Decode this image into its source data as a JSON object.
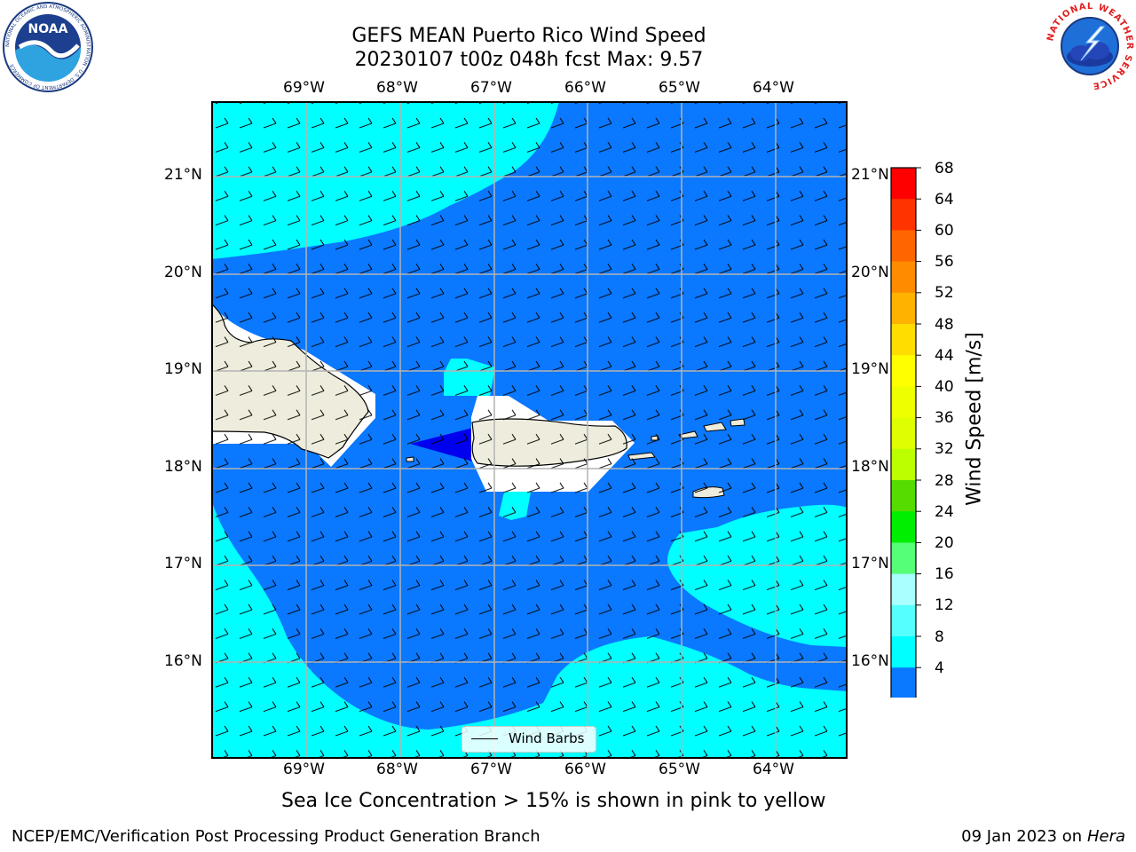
{
  "title": {
    "line1": "GEFS MEAN Puerto Rico Wind Speed",
    "line2": "20230107 t00z 048h fcst   Max: 9.57"
  },
  "logos": {
    "left": "NOAA",
    "left_ring": "NATIONAL OCEANIC AND ATMOSPHERIC ADMINISTRATION · U.S. DEPARTMENT OF COMMERCE",
    "right_ring": "NATIONAL WEATHER SERVICE"
  },
  "map": {
    "lon_labels": [
      "69°W",
      "68°W",
      "67°W",
      "66°W",
      "65°W",
      "64°W"
    ],
    "lat_labels": [
      "21°N",
      "20°N",
      "19°N",
      "18°N",
      "17°N",
      "16°N"
    ],
    "legend_label": "Wind Barbs",
    "colors": {
      "ocean_mid": "#0a78ff",
      "ocean_low": "#00ffff",
      "ocean_min": "#0000ee",
      "land": "#eeecdc",
      "grid": "#b4b4b4"
    }
  },
  "colorbar": {
    "label": "Wind Speed [m/s]",
    "ticks": [
      "68",
      "64",
      "60",
      "56",
      "52",
      "48",
      "44",
      "40",
      "36",
      "32",
      "28",
      "24",
      "20",
      "16",
      "12",
      "8",
      "4"
    ],
    "colors": [
      "#ff0000",
      "#ff3300",
      "#ff6600",
      "#ff8c00",
      "#ffb300",
      "#ffdd00",
      "#ffff00",
      "#eeff00",
      "#ddff00",
      "#bbff00",
      "#55dd00",
      "#00ee00",
      "#55ff77",
      "#aaffff",
      "#55ffff",
      "#00ffff",
      "#0a78ff",
      "#0000ee"
    ]
  },
  "note": "Sea Ice Concentration > 15% is shown in pink to yellow",
  "footer": {
    "left": "NCEP/EMC/Verification Post Processing Product Generation Branch",
    "date": "09 Jan 2023 on ",
    "machine": "Hera"
  }
}
